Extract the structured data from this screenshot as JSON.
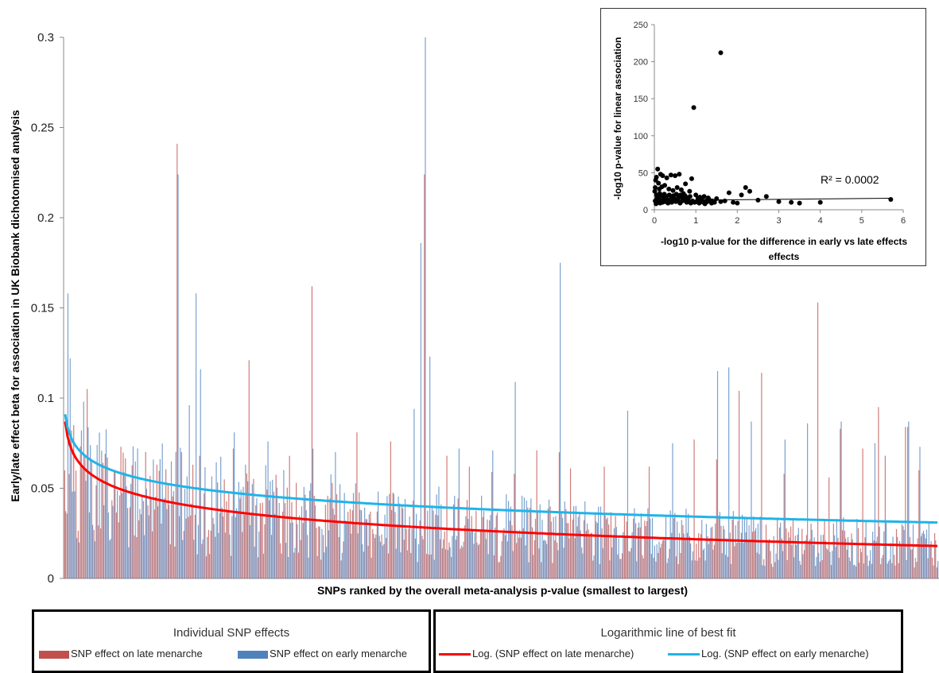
{
  "chart_data": [
    {
      "type": "bar",
      "ylabel": "Early/late effect beta for association in UK Biobank dichotomised analysis",
      "xlabel": "SNPs ranked by the overall meta-analysis p-value (smallest to largest)",
      "ylim": [
        0,
        0.3
      ],
      "y_ticks": [
        "0",
        "0.05",
        "0.1",
        "0.15",
        "0.2",
        "0.25",
        "0.3"
      ],
      "snp_count": 389,
      "series": [
        {
          "name": "SNP effect on late menarche",
          "color": "#c0504d",
          "peaks": [
            [
              4,
              0.085
            ],
            [
              10,
              0.105
            ],
            [
              25,
              0.073
            ],
            [
              50,
              0.241
            ],
            [
              52,
              0.07
            ],
            [
              60,
              0.068
            ],
            [
              75,
              0.072
            ],
            [
              82,
              0.121
            ],
            [
              100,
              0.068
            ],
            [
              130,
              0.081
            ],
            [
              160,
              0.069
            ],
            [
              170,
              0.068
            ],
            [
              180,
              0.062
            ],
            [
              190,
              0.059
            ],
            [
              200,
              0.058
            ],
            [
              220,
              0.07
            ],
            [
              240,
              0.062
            ],
            [
              280,
              0.077
            ],
            [
              300,
              0.104
            ],
            [
              320,
              0.058
            ],
            [
              340,
              0.056
            ],
            [
              355,
              0.072
            ],
            [
              365,
              0.068
            ],
            [
              374,
              0.084
            ],
            [
              380,
              0.06
            ],
            [
              110,
              0.162
            ],
            [
              145,
              0.076
            ],
            [
              160,
              0.224
            ],
            [
              210,
              0.071
            ],
            [
              225,
              0.061
            ],
            [
              260,
              0.062
            ],
            [
              290,
              0.066
            ],
            [
              310,
              0.114
            ],
            [
              335,
              0.153
            ],
            [
              345,
              0.083
            ],
            [
              362,
              0.095
            ],
            [
              375,
              0.084
            ]
          ]
        },
        {
          "name": "SNP effect on early menarche",
          "color": "#4f81bd",
          "peaks": [
            [
              1,
              0.158
            ],
            [
              2,
              0.122
            ],
            [
              8,
              0.098
            ],
            [
              14,
              0.074
            ],
            [
              50,
              0.224
            ],
            [
              55,
              0.096
            ],
            [
              58,
              0.158
            ],
            [
              60,
              0.116
            ],
            [
              75,
              0.081
            ],
            [
              90,
              0.076
            ],
            [
              110,
              0.072
            ],
            [
              120,
              0.07
            ],
            [
              155,
              0.094
            ],
            [
              158,
              0.186
            ],
            [
              160,
              0.3
            ],
            [
              162,
              0.123
            ],
            [
              175,
              0.072
            ],
            [
              190,
              0.071
            ],
            [
              200,
              0.109
            ],
            [
              220,
              0.175
            ],
            [
              250,
              0.093
            ],
            [
              270,
              0.075
            ],
            [
              290,
              0.115
            ],
            [
              295,
              0.117
            ],
            [
              305,
              0.087
            ],
            [
              320,
              0.077
            ],
            [
              330,
              0.086
            ],
            [
              345,
              0.087
            ],
            [
              360,
              0.075
            ],
            [
              375,
              0.087
            ],
            [
              380,
              0.073
            ]
          ]
        }
      ],
      "fit_lines": [
        {
          "name": "Log. (SNP effect on late menarche)",
          "color": "#ff0000",
          "y_start": 0.087,
          "y_end": 0.018
        },
        {
          "name": "Log. (SNP effect on early menarche)",
          "color": "#1fb4e8",
          "y_start": 0.091,
          "y_end": 0.031
        }
      ]
    },
    {
      "type": "scatter",
      "xlabel": "-log10 p-value for the difference in early vs late effects",
      "ylabel": "-log10 p-value for linear association",
      "xlim": [
        0,
        6
      ],
      "ylim": [
        0,
        250
      ],
      "x_ticks": [
        "0",
        "1",
        "2",
        "3",
        "4",
        "5",
        "6"
      ],
      "y_ticks": [
        "0",
        "50",
        "100",
        "150",
        "200",
        "250"
      ],
      "annotation": "R² = 0.0002",
      "points": [
        [
          1.6,
          212
        ],
        [
          0.95,
          138
        ],
        [
          5.7,
          14
        ],
        [
          4.0,
          10
        ],
        [
          3.5,
          9
        ],
        [
          3.3,
          10
        ],
        [
          3.0,
          11
        ],
        [
          2.7,
          18
        ],
        [
          2.5,
          13
        ],
        [
          2.3,
          25
        ],
        [
          2.2,
          30
        ],
        [
          2.1,
          20
        ],
        [
          1.8,
          23
        ],
        [
          1.5,
          15
        ],
        [
          1.3,
          16
        ],
        [
          1.2,
          18
        ],
        [
          1.1,
          17
        ],
        [
          0.9,
          42
        ],
        [
          0.75,
          35
        ],
        [
          0.6,
          48
        ],
        [
          0.5,
          46
        ],
        [
          0.4,
          47
        ],
        [
          0.3,
          43
        ],
        [
          0.2,
          46
        ],
        [
          0.15,
          48
        ],
        [
          0.08,
          55
        ],
        [
          0.05,
          44
        ],
        [
          0.03,
          40
        ],
        [
          0.02,
          30
        ],
        [
          0.01,
          25
        ],
        [
          0.1,
          36
        ],
        [
          0.12,
          28
        ],
        [
          0.18,
          31
        ],
        [
          0.25,
          33
        ],
        [
          0.35,
          28
        ],
        [
          0.45,
          26
        ],
        [
          0.55,
          30
        ],
        [
          0.65,
          27
        ],
        [
          0.7,
          22
        ],
        [
          0.85,
          25
        ],
        [
          1.0,
          20
        ],
        [
          1.05,
          15
        ],
        [
          1.15,
          13
        ],
        [
          1.25,
          12
        ],
        [
          1.4,
          12
        ],
        [
          1.45,
          10
        ],
        [
          1.6,
          11
        ],
        [
          1.7,
          12
        ],
        [
          1.9,
          10
        ],
        [
          2.0,
          9
        ],
        [
          0.02,
          12
        ],
        [
          0.04,
          8
        ],
        [
          0.06,
          15
        ],
        [
          0.09,
          10
        ],
        [
          0.11,
          14
        ],
        [
          0.14,
          9
        ],
        [
          0.16,
          12
        ],
        [
          0.2,
          10
        ],
        [
          0.22,
          16
        ],
        [
          0.27,
          11
        ],
        [
          0.3,
          14
        ],
        [
          0.33,
          9
        ],
        [
          0.38,
          13
        ],
        [
          0.42,
          10
        ],
        [
          0.48,
          15
        ],
        [
          0.52,
          11
        ],
        [
          0.57,
          14
        ],
        [
          0.62,
          9
        ],
        [
          0.68,
          12
        ],
        [
          0.72,
          15
        ],
        [
          0.78,
          10
        ],
        [
          0.82,
          13
        ],
        [
          0.88,
          9
        ],
        [
          0.92,
          12
        ],
        [
          0.97,
          10
        ],
        [
          1.02,
          11
        ],
        [
          1.08,
          9
        ],
        [
          1.12,
          14
        ],
        [
          1.18,
          10
        ],
        [
          1.22,
          8
        ],
        [
          1.28,
          11
        ],
        [
          1.33,
          13
        ],
        [
          1.38,
          9
        ],
        [
          0.05,
          20
        ],
        [
          0.07,
          18
        ],
        [
          0.13,
          22
        ],
        [
          0.17,
          19
        ],
        [
          0.24,
          21
        ],
        [
          0.29,
          18
        ],
        [
          0.36,
          20
        ],
        [
          0.41,
          17
        ],
        [
          0.46,
          19
        ],
        [
          0.53,
          21
        ],
        [
          0.58,
          18
        ],
        [
          0.63,
          20
        ],
        [
          0.66,
          17
        ],
        [
          0.74,
          19
        ],
        [
          0.8,
          16
        ],
        [
          0.86,
          18
        ]
      ],
      "trend": {
        "y_start": 12.5,
        "y_end": 15.5
      }
    }
  ],
  "legend": {
    "individual": {
      "title": "Individual SNP effects",
      "late": "SNP effect on late menarche",
      "early": "SNP effect on early menarche",
      "late_color": "#c0504d",
      "early_color": "#4f81bd"
    },
    "fit": {
      "title": "Logarithmic line of best fit",
      "late": "Log. (SNP effect on late menarche)",
      "early": "Log. (SNP effect on early menarche)",
      "late_color": "#ff0000",
      "early_color": "#1fb4e8"
    }
  }
}
